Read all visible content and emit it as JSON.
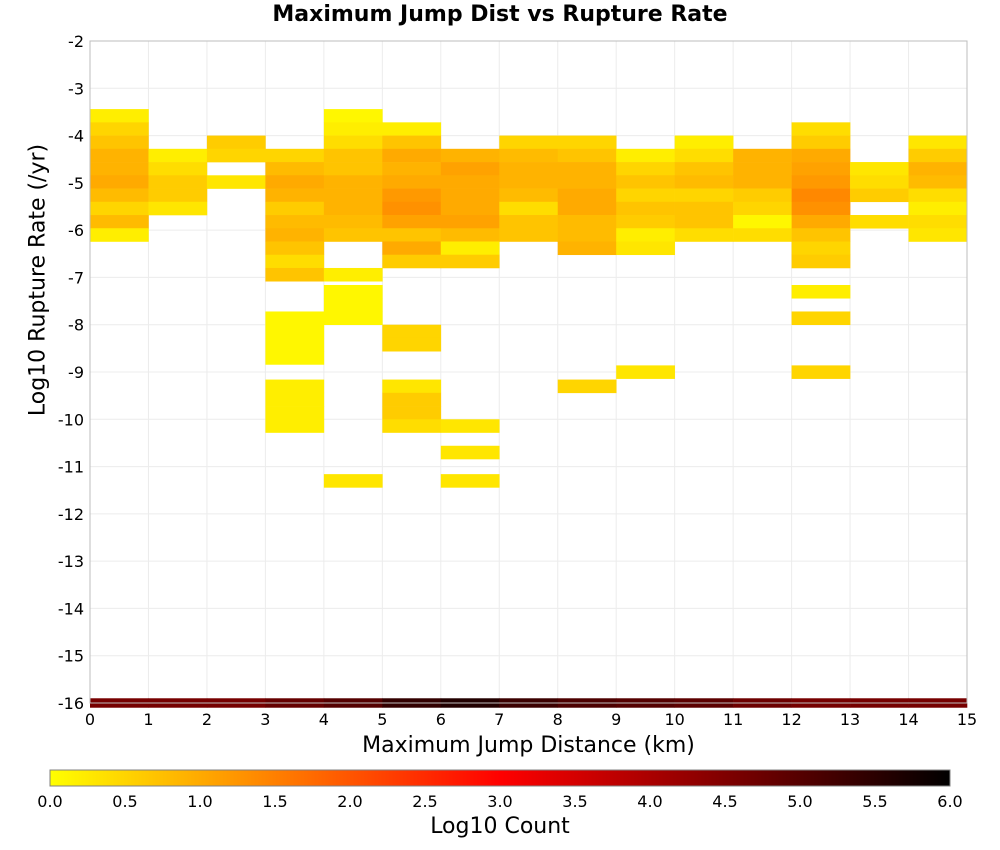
{
  "chart_data": {
    "type": "heatmap",
    "title": "Maximum Jump Dist vs Rupture Rate",
    "xlabel": "Maximum Jump Distance (km)",
    "ylabel": "Log10 Rupture Rate (/yr)",
    "colorbar_label": "Log10 Count",
    "xlim": [
      0,
      15
    ],
    "ylim": [
      -16,
      -2
    ],
    "x_ticks": [
      "0",
      "1",
      "2",
      "3",
      "4",
      "5",
      "6",
      "7",
      "8",
      "9",
      "10",
      "11",
      "12",
      "13",
      "14",
      "15"
    ],
    "y_ticks": [
      "-2",
      "-3",
      "-4",
      "-5",
      "-6",
      "-7",
      "-8",
      "-9",
      "-10",
      "-11",
      "-12",
      "-13",
      "-14",
      "-15",
      "-16"
    ],
    "colorbar_ticks": [
      "0.0",
      "0.5",
      "1.0",
      "1.5",
      "2.0",
      "2.5",
      "3.0",
      "3.5",
      "4.0",
      "4.5",
      "5.0",
      "5.5",
      "6.0"
    ],
    "colorbar_range": [
      0,
      6
    ],
    "colormap": [
      "#ffff00",
      "#ffaa00",
      "#ff5500",
      "#ff0000",
      "#aa0000",
      "#550000",
      "#000000"
    ],
    "grid": true,
    "y_bin_size": 0.28,
    "cells": [
      {
        "x": 0,
        "y": -3.58,
        "v": 0.2
      },
      {
        "x": 0,
        "y": -3.86,
        "v": 0.5
      },
      {
        "x": 0,
        "y": -4.14,
        "v": 0.7
      },
      {
        "x": 0,
        "y": -4.42,
        "v": 0.9
      },
      {
        "x": 0,
        "y": -4.7,
        "v": 0.9
      },
      {
        "x": 0,
        "y": -4.98,
        "v": 1.0
      },
      {
        "x": 0,
        "y": -5.26,
        "v": 0.8
      },
      {
        "x": 0,
        "y": -5.54,
        "v": 0.5
      },
      {
        "x": 0,
        "y": -5.82,
        "v": 0.8
      },
      {
        "x": 0,
        "y": -6.1,
        "v": 0.2
      },
      {
        "x": 1,
        "y": -4.42,
        "v": 0.2
      },
      {
        "x": 1,
        "y": -4.7,
        "v": 0.4
      },
      {
        "x": 1,
        "y": -4.98,
        "v": 0.6
      },
      {
        "x": 1,
        "y": -5.26,
        "v": 0.6
      },
      {
        "x": 1,
        "y": -5.54,
        "v": 0.3
      },
      {
        "x": 2,
        "y": -4.14,
        "v": 0.6
      },
      {
        "x": 2,
        "y": -4.42,
        "v": 0.5
      },
      {
        "x": 2,
        "y": -4.98,
        "v": 0.3
      },
      {
        "x": 3,
        "y": -4.42,
        "v": 0.5
      },
      {
        "x": 3,
        "y": -4.7,
        "v": 0.8
      },
      {
        "x": 3,
        "y": -4.98,
        "v": 1.0
      },
      {
        "x": 3,
        "y": -5.26,
        "v": 0.9
      },
      {
        "x": 3,
        "y": -5.54,
        "v": 0.6
      },
      {
        "x": 3,
        "y": -5.82,
        "v": 0.8
      },
      {
        "x": 3,
        "y": -6.1,
        "v": 0.9
      },
      {
        "x": 3,
        "y": -6.38,
        "v": 0.7
      },
      {
        "x": 3,
        "y": -6.66,
        "v": 0.4
      },
      {
        "x": 3,
        "y": -6.94,
        "v": 0.7
      },
      {
        "x": 3,
        "y": -7.86,
        "v": 0.1
      },
      {
        "x": 3,
        "y": -8.14,
        "v": 0.1
      },
      {
        "x": 3,
        "y": -8.42,
        "v": 0.1
      },
      {
        "x": 3,
        "y": -8.7,
        "v": 0.1
      },
      {
        "x": 3,
        "y": -9.3,
        "v": 0.2
      },
      {
        "x": 3,
        "y": -9.58,
        "v": 0.2
      },
      {
        "x": 3,
        "y": -9.86,
        "v": 0.2
      },
      {
        "x": 3,
        "y": -10.14,
        "v": 0.2
      },
      {
        "x": 4,
        "y": -3.58,
        "v": 0.1
      },
      {
        "x": 4,
        "y": -3.86,
        "v": 0.2
      },
      {
        "x": 4,
        "y": -4.14,
        "v": 0.4
      },
      {
        "x": 4,
        "y": -4.42,
        "v": 0.7
      },
      {
        "x": 4,
        "y": -4.7,
        "v": 0.7
      },
      {
        "x": 4,
        "y": -4.98,
        "v": 0.9
      },
      {
        "x": 4,
        "y": -5.26,
        "v": 0.9
      },
      {
        "x": 4,
        "y": -5.54,
        "v": 0.9
      },
      {
        "x": 4,
        "y": -5.82,
        "v": 0.8
      },
      {
        "x": 4,
        "y": -6.1,
        "v": 0.7
      },
      {
        "x": 4,
        "y": -6.94,
        "v": 0.2
      },
      {
        "x": 4,
        "y": -7.3,
        "v": 0.1
      },
      {
        "x": 4,
        "y": -7.58,
        "v": 0.1
      },
      {
        "x": 4,
        "y": -7.86,
        "v": 0.1
      },
      {
        "x": 4,
        "y": -11.3,
        "v": 0.3
      },
      {
        "x": 5,
        "y": -3.86,
        "v": 0.2
      },
      {
        "x": 5,
        "y": -4.14,
        "v": 0.7
      },
      {
        "x": 5,
        "y": -4.42,
        "v": 1.0
      },
      {
        "x": 5,
        "y": -4.7,
        "v": 0.9
      },
      {
        "x": 5,
        "y": -4.98,
        "v": 1.0
      },
      {
        "x": 5,
        "y": -5.26,
        "v": 1.2
      },
      {
        "x": 5,
        "y": -5.54,
        "v": 1.3
      },
      {
        "x": 5,
        "y": -5.82,
        "v": 1.1
      },
      {
        "x": 5,
        "y": -6.1,
        "v": 0.7
      },
      {
        "x": 5,
        "y": -6.38,
        "v": 1.0
      },
      {
        "x": 5,
        "y": -6.66,
        "v": 0.6
      },
      {
        "x": 5,
        "y": -8.14,
        "v": 0.5
      },
      {
        "x": 5,
        "y": -8.42,
        "v": 0.5
      },
      {
        "x": 5,
        "y": -9.3,
        "v": 0.3
      },
      {
        "x": 5,
        "y": -9.58,
        "v": 0.6
      },
      {
        "x": 5,
        "y": -9.86,
        "v": 0.6
      },
      {
        "x": 5,
        "y": -10.14,
        "v": 0.4
      },
      {
        "x": 6,
        "y": -4.42,
        "v": 0.9
      },
      {
        "x": 6,
        "y": -4.7,
        "v": 1.1
      },
      {
        "x": 6,
        "y": -4.98,
        "v": 1.0
      },
      {
        "x": 6,
        "y": -5.26,
        "v": 1.0
      },
      {
        "x": 6,
        "y": -5.54,
        "v": 1.0
      },
      {
        "x": 6,
        "y": -5.82,
        "v": 1.1
      },
      {
        "x": 6,
        "y": -6.1,
        "v": 0.8
      },
      {
        "x": 6,
        "y": -6.38,
        "v": 0.2
      },
      {
        "x": 6,
        "y": -6.66,
        "v": 0.6
      },
      {
        "x": 6,
        "y": -10.14,
        "v": 0.3
      },
      {
        "x": 6,
        "y": -10.7,
        "v": 0.3
      },
      {
        "x": 6,
        "y": -11.3,
        "v": 0.3
      },
      {
        "x": 7,
        "y": -4.14,
        "v": 0.5
      },
      {
        "x": 7,
        "y": -4.42,
        "v": 0.8
      },
      {
        "x": 7,
        "y": -4.7,
        "v": 0.9
      },
      {
        "x": 7,
        "y": -4.98,
        "v": 0.9
      },
      {
        "x": 7,
        "y": -5.26,
        "v": 0.8
      },
      {
        "x": 7,
        "y": -5.54,
        "v": 0.4
      },
      {
        "x": 7,
        "y": -5.82,
        "v": 0.7
      },
      {
        "x": 7,
        "y": -6.1,
        "v": 0.7
      },
      {
        "x": 8,
        "y": -4.14,
        "v": 0.5
      },
      {
        "x": 8,
        "y": -4.42,
        "v": 0.7
      },
      {
        "x": 8,
        "y": -4.7,
        "v": 0.9
      },
      {
        "x": 8,
        "y": -4.98,
        "v": 0.9
      },
      {
        "x": 8,
        "y": -5.26,
        "v": 1.0
      },
      {
        "x": 8,
        "y": -5.54,
        "v": 1.0
      },
      {
        "x": 8,
        "y": -5.82,
        "v": 0.8
      },
      {
        "x": 8,
        "y": -6.1,
        "v": 0.8
      },
      {
        "x": 8,
        "y": -6.38,
        "v": 0.9
      },
      {
        "x": 8,
        "y": -9.3,
        "v": 0.5
      },
      {
        "x": 9,
        "y": -4.42,
        "v": 0.2
      },
      {
        "x": 9,
        "y": -4.7,
        "v": 0.5
      },
      {
        "x": 9,
        "y": -4.98,
        "v": 0.7
      },
      {
        "x": 9,
        "y": -5.26,
        "v": 0.5
      },
      {
        "x": 9,
        "y": -5.54,
        "v": 0.7
      },
      {
        "x": 9,
        "y": -5.82,
        "v": 0.6
      },
      {
        "x": 9,
        "y": -6.1,
        "v": 0.2
      },
      {
        "x": 9,
        "y": -6.38,
        "v": 0.3
      },
      {
        "x": 9,
        "y": -9.0,
        "v": 0.3
      },
      {
        "x": 10,
        "y": -4.14,
        "v": 0.2
      },
      {
        "x": 10,
        "y": -4.42,
        "v": 0.4
      },
      {
        "x": 10,
        "y": -4.7,
        "v": 0.7
      },
      {
        "x": 10,
        "y": -4.98,
        "v": 0.8
      },
      {
        "x": 10,
        "y": -5.26,
        "v": 0.5
      },
      {
        "x": 10,
        "y": -5.54,
        "v": 0.7
      },
      {
        "x": 10,
        "y": -5.82,
        "v": 0.7
      },
      {
        "x": 10,
        "y": -6.1,
        "v": 0.4
      },
      {
        "x": 11,
        "y": -4.42,
        "v": 0.9
      },
      {
        "x": 11,
        "y": -4.7,
        "v": 0.9
      },
      {
        "x": 11,
        "y": -4.98,
        "v": 0.9
      },
      {
        "x": 11,
        "y": -5.26,
        "v": 0.6
      },
      {
        "x": 11,
        "y": -5.54,
        "v": 0.5
      },
      {
        "x": 11,
        "y": -5.82,
        "v": 0.1
      },
      {
        "x": 11,
        "y": -6.1,
        "v": 0.4
      },
      {
        "x": 12,
        "y": -3.86,
        "v": 0.4
      },
      {
        "x": 12,
        "y": -4.14,
        "v": 0.6
      },
      {
        "x": 12,
        "y": -4.42,
        "v": 1.0
      },
      {
        "x": 12,
        "y": -4.7,
        "v": 1.1
      },
      {
        "x": 12,
        "y": -4.98,
        "v": 1.2
      },
      {
        "x": 12,
        "y": -5.26,
        "v": 1.4
      },
      {
        "x": 12,
        "y": -5.54,
        "v": 1.3
      },
      {
        "x": 12,
        "y": -5.82,
        "v": 1.0
      },
      {
        "x": 12,
        "y": -6.1,
        "v": 0.7
      },
      {
        "x": 12,
        "y": -6.38,
        "v": 0.5
      },
      {
        "x": 12,
        "y": -6.66,
        "v": 0.6
      },
      {
        "x": 12,
        "y": -7.3,
        "v": 0.2
      },
      {
        "x": 12,
        "y": -7.86,
        "v": 0.5
      },
      {
        "x": 12,
        "y": -9.0,
        "v": 0.5
      },
      {
        "x": 13,
        "y": -4.7,
        "v": 0.3
      },
      {
        "x": 13,
        "y": -4.98,
        "v": 0.4
      },
      {
        "x": 13,
        "y": -5.26,
        "v": 0.6
      },
      {
        "x": 13,
        "y": -5.82,
        "v": 0.4
      },
      {
        "x": 14,
        "y": -4.14,
        "v": 0.3
      },
      {
        "x": 14,
        "y": -4.42,
        "v": 0.6
      },
      {
        "x": 14,
        "y": -4.7,
        "v": 0.9
      },
      {
        "x": 14,
        "y": -4.98,
        "v": 0.8
      },
      {
        "x": 14,
        "y": -5.26,
        "v": 0.4
      },
      {
        "x": 14,
        "y": -5.54,
        "v": 0.2
      },
      {
        "x": 14,
        "y": -5.82,
        "v": 0.4
      },
      {
        "x": 14,
        "y": -6.1,
        "v": 0.3
      }
    ],
    "bottom_row": {
      "y": -16,
      "values": [
        4.6,
        4.6,
        4.6,
        4.8,
        5.0,
        5.4,
        5.6,
        5.3,
        5.1,
        5.0,
        4.9,
        4.7,
        4.6,
        4.6,
        4.6
      ]
    }
  }
}
